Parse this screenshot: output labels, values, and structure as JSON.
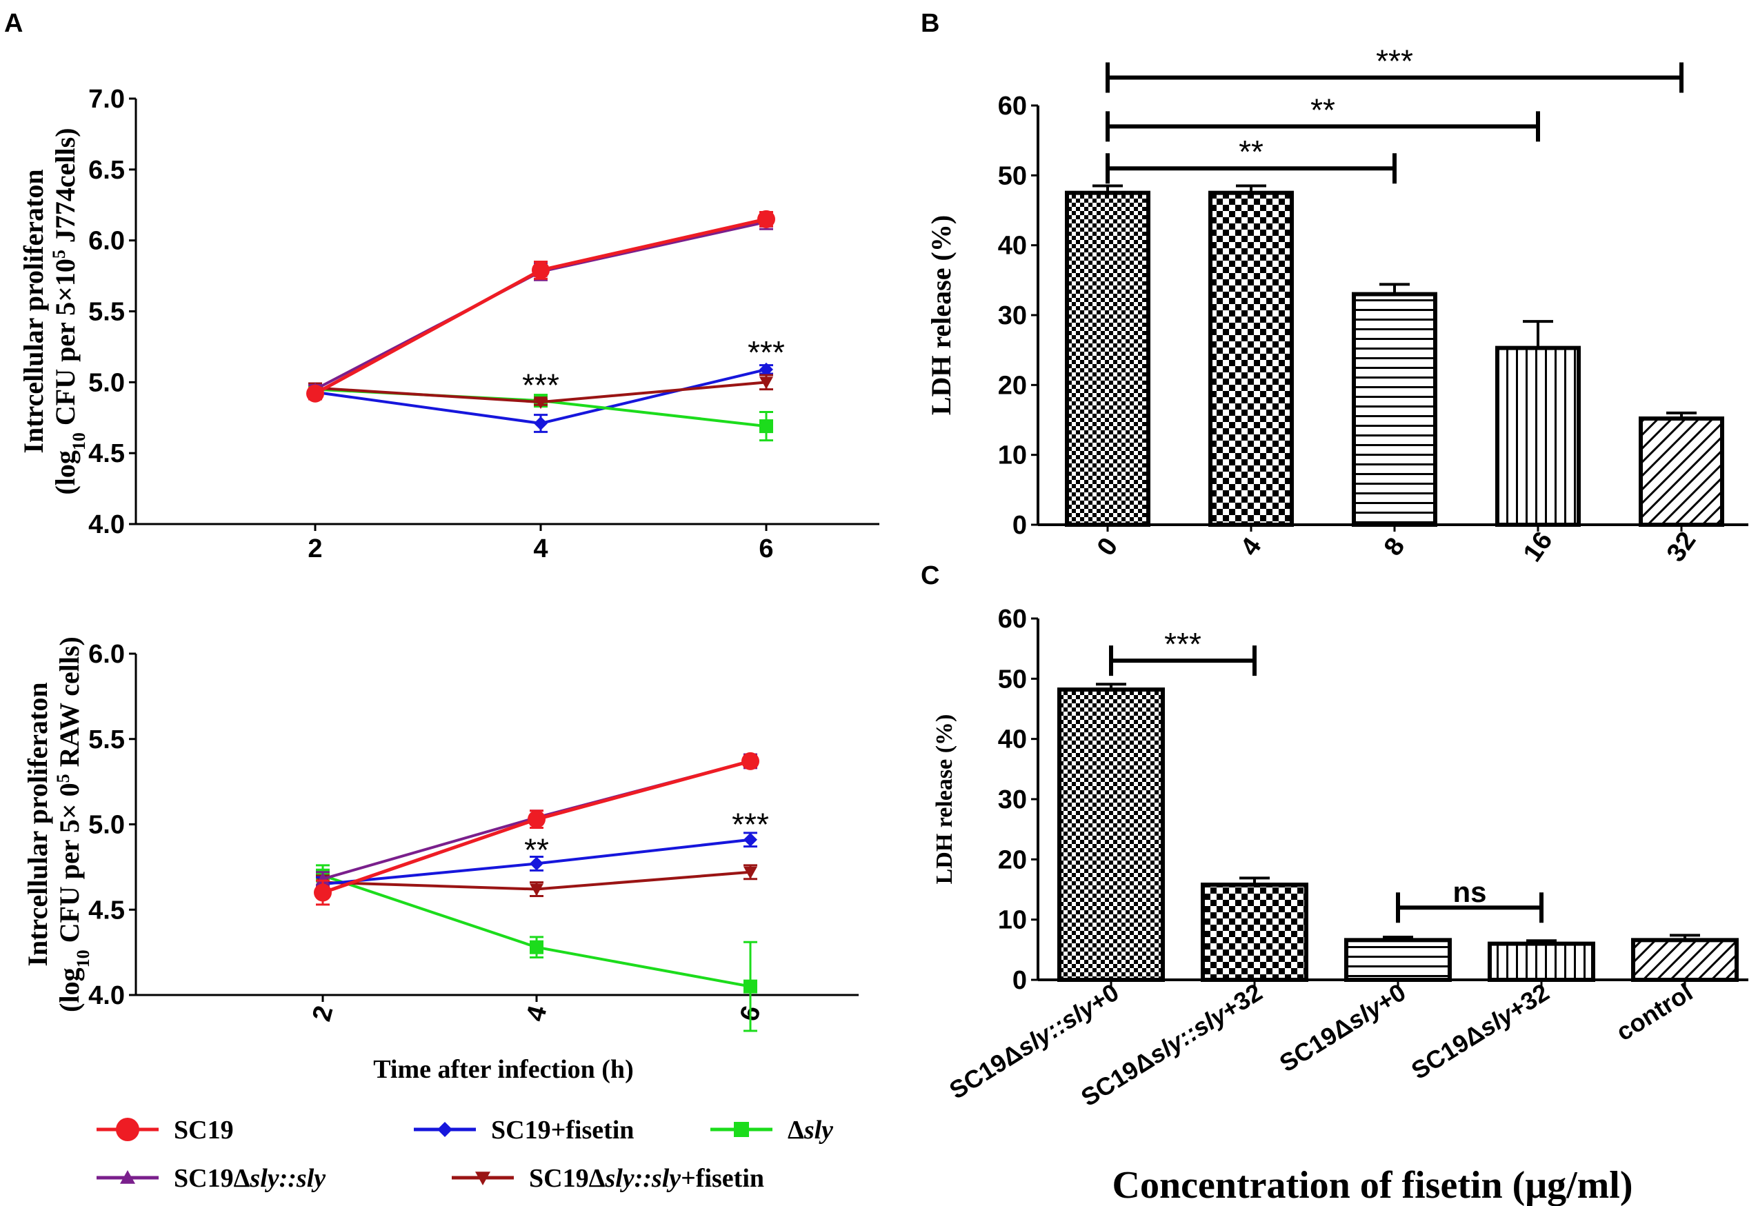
{
  "figure": {
    "panel_labels": [
      "A",
      "B",
      "C"
    ],
    "colors": {
      "sc19": "#ee1c24",
      "sc19_fisetin": "#1616dc",
      "dsly": "#1cdc1c",
      "sc19_dsly_sly": "#7a1f8c",
      "sc19_dsly_sly_fisetin": "#9a1414"
    }
  },
  "legend": [
    {
      "key": "sc19",
      "parts": [
        {
          "t": "SC19",
          "i": false
        }
      ],
      "marker": "circle"
    },
    {
      "key": "sc19_fisetin",
      "parts": [
        {
          "t": "SC19+fisetin",
          "i": false
        }
      ],
      "marker": "diamond"
    },
    {
      "key": "dsly",
      "parts": [
        {
          "t": "Δ",
          "i": false
        },
        {
          "t": "sly",
          "i": true
        }
      ],
      "marker": "square"
    },
    {
      "key": "sc19_dsly_sly",
      "parts": [
        {
          "t": "SC19Δ",
          "i": false
        },
        {
          "t": "sly::sly",
          "i": true
        }
      ],
      "marker": "triangle-up"
    },
    {
      "key": "sc19_dsly_sly_fisetin",
      "parts": [
        {
          "t": "SC19Δ",
          "i": false
        },
        {
          "t": "sly::sly",
          "i": true
        },
        {
          "t": "+fisetin",
          "i": false
        }
      ],
      "marker": "triangle-down"
    }
  ],
  "chart_data": [
    {
      "panel": "A",
      "type": "line",
      "title": "",
      "ylabel_line1": "Intrcellular proliferaton",
      "ylabel_line2_parts": [
        "(log",
        "10",
        " CFU per 5×10",
        "5",
        " J774cells)"
      ],
      "xlabel": "",
      "ylim": [
        4.0,
        7.0
      ],
      "yticks": [
        "4.0",
        "4.5",
        "5.0",
        "5.5",
        "6.0",
        "6.5",
        "7.0"
      ],
      "x": [
        2,
        4,
        6
      ],
      "xticks": [
        "2",
        "4",
        "6"
      ],
      "series": [
        {
          "key": "sc19_fisetin",
          "name": "SC19+fisetin",
          "marker": "diamond",
          "values": [
            4.93,
            4.71,
            5.09
          ],
          "errors": [
            0.03,
            0.06,
            0.03
          ]
        },
        {
          "key": "dsly",
          "name": "Δsly",
          "marker": "square",
          "values": [
            4.95,
            4.87,
            4.69
          ],
          "errors": [
            0.03,
            0.02,
            0.1
          ]
        },
        {
          "key": "sc19_dsly_sly_fisetin",
          "name": "SC19Δsly::sly+fisetin",
          "marker": "triangle-down",
          "values": [
            4.96,
            4.86,
            5.0
          ],
          "errors": [
            0.03,
            0.02,
            0.05
          ]
        },
        {
          "key": "sc19_dsly_sly",
          "name": "SC19Δsly::sly",
          "marker": "triangle-up",
          "values": [
            4.95,
            5.78,
            6.13
          ],
          "errors": [
            0.03,
            0.06,
            0.05
          ]
        },
        {
          "key": "sc19",
          "name": "SC19",
          "marker": "circle",
          "values": [
            4.92,
            5.79,
            6.15
          ],
          "errors": [
            0.04,
            0.06,
            0.05
          ]
        }
      ],
      "annotations": [
        {
          "text": "***",
          "x": 4,
          "y": 4.98
        },
        {
          "text": "***",
          "x": 6,
          "y": 5.21
        }
      ]
    },
    {
      "panel": "A",
      "type": "line",
      "title": "",
      "ylabel_line1": "Intrcellular proliferaton",
      "ylabel_line2_parts": [
        "(log",
        "10",
        " CFU per 5× 0",
        "5",
        " RAW cells)"
      ],
      "xlabel": "Time after infection (h)",
      "ylim": [
        4.0,
        6.0
      ],
      "yticks": [
        "4.0",
        "4.5",
        "5.0",
        "5.5",
        "6.0"
      ],
      "x": [
        2,
        4,
        6
      ],
      "xticks": [
        "2",
        "4",
        "6"
      ],
      "series": [
        {
          "key": "dsly",
          "name": "Δsly",
          "marker": "square",
          "values": [
            4.7,
            4.28,
            4.05
          ],
          "errors": [
            0.06,
            0.06,
            0.26
          ]
        },
        {
          "key": "sc19_dsly_sly_fisetin",
          "name": "SC19Δsly::sly+fisetin",
          "marker": "triangle-down",
          "values": [
            4.66,
            4.62,
            4.72
          ],
          "errors": [
            0.04,
            0.04,
            0.04
          ]
        },
        {
          "key": "sc19_fisetin",
          "name": "SC19+fisetin",
          "marker": "diamond",
          "values": [
            4.65,
            4.77,
            4.91
          ],
          "errors": [
            0.04,
            0.04,
            0.04
          ]
        },
        {
          "key": "sc19_dsly_sly",
          "name": "SC19Δsly::sly",
          "marker": "triangle-up",
          "values": [
            4.68,
            5.04,
            5.37
          ],
          "errors": [
            0.04,
            0.04,
            0.04
          ]
        },
        {
          "key": "sc19",
          "name": "SC19",
          "marker": "circle",
          "values": [
            4.6,
            5.03,
            5.37
          ],
          "errors": [
            0.07,
            0.05,
            0.03
          ]
        }
      ],
      "annotations": [
        {
          "text": "**",
          "x": 4,
          "y": 4.85
        },
        {
          "text": "***",
          "x": 6,
          "y": 5.0
        }
      ]
    },
    {
      "panel": "B",
      "type": "bar",
      "title": "",
      "ylabel": "LDH release (%)",
      "xlabel": "",
      "ylim": [
        0,
        60
      ],
      "yticks": [
        "0",
        "10",
        "20",
        "30",
        "40",
        "50",
        "60"
      ],
      "categories": [
        "0",
        "4",
        "8",
        "16",
        "32"
      ],
      "values": [
        47.5,
        47.5,
        33,
        25.3,
        15.2
      ],
      "errors": [
        1.0,
        1.0,
        1.4,
        3.8,
        0.8
      ],
      "patterns": [
        "checker-fine",
        "checker",
        "hlines",
        "vlines",
        "diag"
      ],
      "brackets": [
        {
          "from": 0,
          "to": 2,
          "y": 51,
          "text": "**"
        },
        {
          "from": 0,
          "to": 3,
          "y": 57,
          "text": "**"
        },
        {
          "from": 0,
          "to": 4,
          "y": 64,
          "text": "***"
        }
      ]
    },
    {
      "panel": "C",
      "type": "bar",
      "title": "",
      "ylabel": "LDH release (%)",
      "xlabel": "Concentration of  fisetin (μg/ml)",
      "ylim": [
        0,
        60
      ],
      "yticks": [
        "0",
        "10",
        "20",
        "30",
        "40",
        "50",
        "60"
      ],
      "categories_parts": [
        [
          {
            "t": "SC19",
            "i": false
          },
          {
            "t": "Δ",
            "i": false
          },
          {
            "t": "sly::sly",
            "i": true
          },
          {
            "t": "+0",
            "i": false
          }
        ],
        [
          {
            "t": "SC19",
            "i": false
          },
          {
            "t": "Δ",
            "i": false
          },
          {
            "t": "sly::sly",
            "i": true
          },
          {
            "t": "+32",
            "i": false
          }
        ],
        [
          {
            "t": "SC19",
            "i": false
          },
          {
            "t": "Δ",
            "i": false
          },
          {
            "t": "sly",
            "i": true
          },
          {
            "t": "+0",
            "i": false
          }
        ],
        [
          {
            "t": "SC19",
            "i": false
          },
          {
            "t": "Δ",
            "i": false
          },
          {
            "t": "sly",
            "i": true
          },
          {
            "t": "+32",
            "i": false
          }
        ],
        [
          {
            "t": "control",
            "i": false
          }
        ]
      ],
      "values": [
        48.2,
        15.8,
        6.6,
        6.0,
        6.6
      ],
      "errors": [
        0.9,
        1.1,
        0.5,
        0.5,
        0.8
      ],
      "patterns": [
        "checker-fine",
        "checker",
        "hlines",
        "vlines",
        "diag"
      ],
      "brackets": [
        {
          "from": 0,
          "to": 1,
          "y": 53,
          "text": "***"
        },
        {
          "from": 2,
          "to": 3,
          "y": 12,
          "text": "ns"
        }
      ]
    }
  ]
}
